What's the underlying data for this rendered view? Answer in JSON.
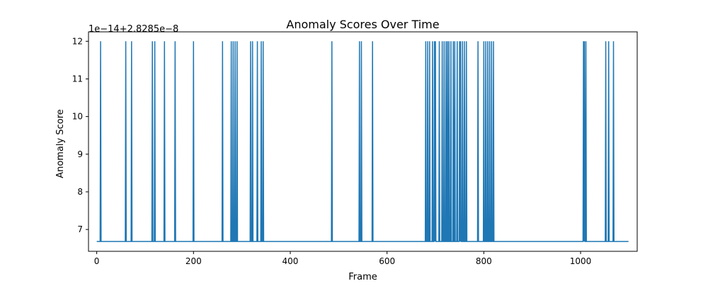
{
  "chart_data": {
    "type": "line",
    "title": "Anomaly Scores Over Time",
    "xlabel": "Frame",
    "ylabel": "Anomaly Score",
    "offset_label": "1e−14+2.8285e−8",
    "xlim": [
      -17,
      1117
    ],
    "ylim": [
      6.42,
      12.25
    ],
    "xticks": [
      0,
      200,
      400,
      600,
      800,
      1000
    ],
    "yticks": [
      7,
      8,
      9,
      10,
      11,
      12
    ],
    "grid": false,
    "baseline": 6.68,
    "peak": 12.0,
    "series": [
      {
        "color": "#1f77b4",
        "x_range": [
          0,
          1099
        ],
        "spike_frames": [
          8,
          60,
          72,
          115,
          120,
          140,
          162,
          200,
          260,
          278,
          282,
          286,
          290,
          318,
          322,
          332,
          340,
          344,
          486,
          543,
          547,
          570,
          680,
          684,
          688,
          694,
          698,
          700,
          708,
          714,
          718,
          722,
          725,
          728,
          732,
          737,
          740,
          745,
          750,
          752,
          756,
          760,
          764,
          788,
          800,
          804,
          808,
          812,
          816,
          820,
          1006,
          1008,
          1011,
          1052,
          1058,
          1068
        ]
      }
    ]
  }
}
